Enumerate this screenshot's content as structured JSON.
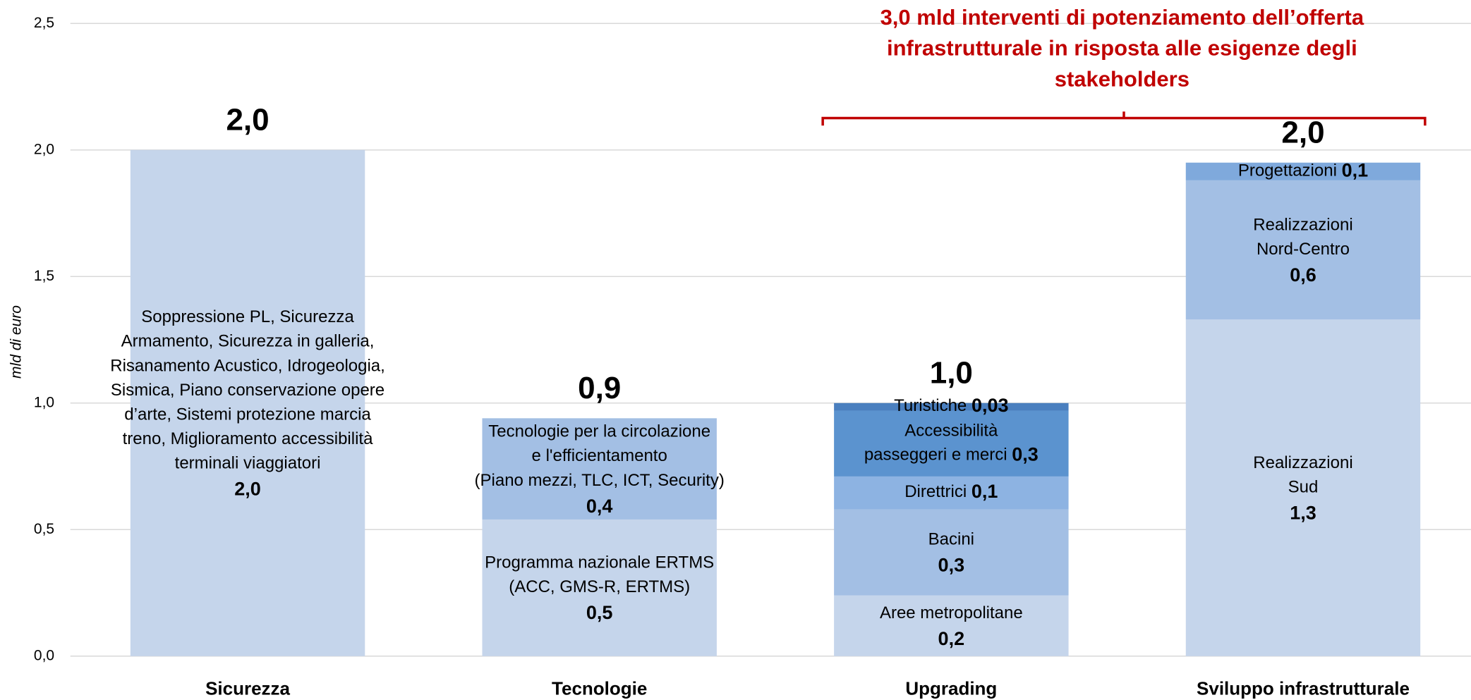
{
  "chart_data": {
    "type": "stacked_bar",
    "y_label": "mld di euro",
    "annotation": [
      "3,0 mld interventi di potenziamento dell’offerta",
      "infrastrutturale in risposta alle esigenze degli",
      "stakeholders"
    ],
    "annotation_color": "#c00000",
    "categories": [
      "Sicurezza",
      "Tecnologie",
      "Upgrading",
      "Sviluppo infrastrutturale"
    ],
    "stacks": [
      [
        {
          "label": [
            "Soppressione PL, Sicurezza",
            "Armamento, Sicurezza in galleria,",
            "Risanamento Acustico, Idrogeologia,",
            "Sismica, Piano conservazione opere",
            "d’arte, Sistemi protezione marcia",
            "treno, Miglioramento accessibilità",
            "terminali viaggiatori"
          ],
          "value": 2.0,
          "value_label": "2,0",
          "color": "#c5d5eb",
          "value_inline": false
        }
      ],
      [
        {
          "label": [
            "Programma nazionale ERTMS",
            "(ACC, GMS-R, ERTMS)"
          ],
          "value": 0.54,
          "value_label": "0,5",
          "color": "#c5d5eb",
          "value_inline": false
        },
        {
          "label": [
            "Tecnologie per la circolazione",
            "e l'efficientamento",
            "(Piano mezzi, TLC, ICT, Security)"
          ],
          "value": 0.4,
          "value_label": "0,4",
          "color": "#a3bfe4",
          "value_inline": false
        }
      ],
      [
        {
          "label": [
            "Aree metropolitane"
          ],
          "value": 0.24,
          "value_label": "0,2",
          "color": "#c5d5eb",
          "value_inline": false
        },
        {
          "label": [
            "Bacini"
          ],
          "value": 0.34,
          "value_label": "0,3",
          "color": "#a3bfe4",
          "value_inline": false
        },
        {
          "label": [
            "Direttrici"
          ],
          "value": 0.13,
          "value_label": "0,1",
          "color": "#8db3e2",
          "value_inline": true
        },
        {
          "label": [
            "Accessibilità",
            "passeggeri e merci"
          ],
          "value": 0.26,
          "value_label": "0,3",
          "color": "#5b93cf",
          "value_inline": true
        },
        {
          "label": [
            "Turistiche"
          ],
          "value": 0.03,
          "value_label": "0,03",
          "color": "#4a7fbf",
          "value_inline": true
        }
      ],
      [
        {
          "label": [
            "Realizzazioni",
            "Sud"
          ],
          "value": 1.33,
          "value_label": "1,3",
          "color": "#c5d5eb",
          "value_inline": false
        },
        {
          "label": [
            "Realizzazioni",
            "Nord-Centro"
          ],
          "value": 0.55,
          "value_label": "0,6",
          "color": "#a3bfe4",
          "value_inline": false
        },
        {
          "label": [
            "Progettazioni"
          ],
          "value": 0.07,
          "value_label": "0,1",
          "color": "#7fa9dc",
          "value_inline": true
        }
      ]
    ],
    "totals": [
      2.0,
      0.94,
      1.0,
      1.95
    ],
    "total_labels": [
      "2,0",
      "0,9",
      "1,0",
      "2,0"
    ],
    "ylim": [
      0,
      2.5
    ],
    "yticks": [
      {
        "value": 0,
        "label": "0,0"
      },
      {
        "value": 0.5,
        "label": "0,5"
      },
      {
        "value": 1,
        "label": "1,0"
      },
      {
        "value": 1.5,
        "label": "1,5"
      },
      {
        "value": 2,
        "label": "2,0"
      },
      {
        "value": 2.5,
        "label": "2,5"
      }
    ],
    "grid": true
  }
}
